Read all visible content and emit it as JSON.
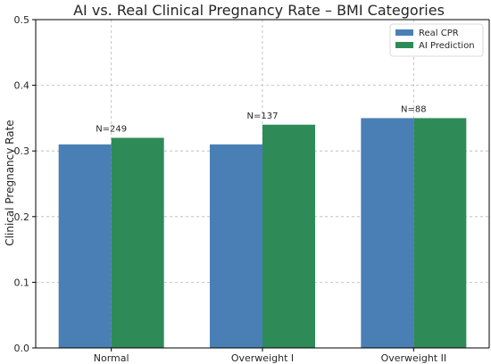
{
  "chart_data": {
    "type": "bar",
    "title": "AI vs. Real Clinical Pregnancy Rate – BMI Categories",
    "xlabel": "",
    "ylabel": "Clinical Pregnancy Rate",
    "categories": [
      "Normal",
      "Overweight I",
      "Overweight II"
    ],
    "series": [
      {
        "name": "Real CPR",
        "values": [
          0.31,
          0.31,
          0.35
        ],
        "color": "#4a7fb5"
      },
      {
        "name": "AI Prediction",
        "values": [
          0.32,
          0.34,
          0.35
        ],
        "color": "#2e8b57"
      }
    ],
    "annotations": [
      "N=249",
      "N=137",
      "N=88"
    ],
    "ylim": [
      0,
      0.5
    ],
    "yticks": [
      "0.0",
      "0.1",
      "0.2",
      "0.3",
      "0.4",
      "0.5"
    ],
    "grid": true,
    "legend_position": "top-right"
  }
}
